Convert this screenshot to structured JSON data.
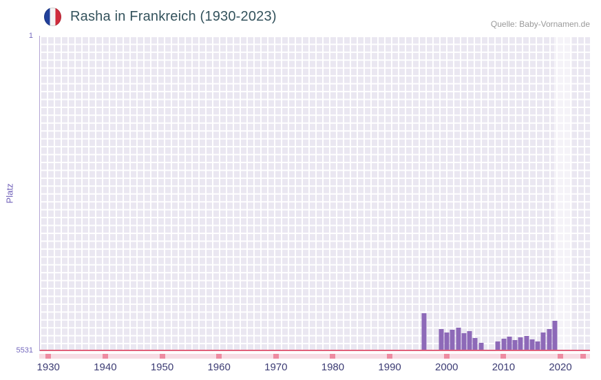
{
  "header": {
    "title": "Rasha in Frankreich (1930-2023)",
    "source": "Quelle: Baby-Vornamen.de",
    "flag_icon": "france-flag-icon"
  },
  "chart_data": {
    "type": "bar",
    "title": "Rasha in Frankreich (1930-2023)",
    "xlabel": "",
    "ylabel": "Platz",
    "y_axis": {
      "top_label": "1",
      "bottom_label": "5531",
      "inverted": true
    },
    "xlim": [
      1928.4,
      2025.2
    ],
    "ylim": [
      1,
      5531
    ],
    "grid": true,
    "x_ticks": [
      1930,
      1940,
      1950,
      1960,
      1970,
      1980,
      1990,
      2000,
      2010,
      2020
    ],
    "strip_marker_years": [
      1930,
      1940,
      1950,
      1960,
      1970,
      1980,
      1990,
      2000,
      2010,
      2020,
      2024
    ],
    "highlight_band": {
      "from": 2018.9,
      "to": 2022.1
    },
    "bars": [
      {
        "year": 1996,
        "rank": 4865
      },
      {
        "year": 1999,
        "rank": 5140
      },
      {
        "year": 2000,
        "rank": 5200
      },
      {
        "year": 2001,
        "rank": 5155
      },
      {
        "year": 2002,
        "rank": 5125
      },
      {
        "year": 2003,
        "rank": 5215
      },
      {
        "year": 2004,
        "rank": 5175
      },
      {
        "year": 2005,
        "rank": 5300
      },
      {
        "year": 2006,
        "rank": 5390
      },
      {
        "year": 2009,
        "rank": 5360
      },
      {
        "year": 2010,
        "rank": 5310
      },
      {
        "year": 2011,
        "rank": 5275
      },
      {
        "year": 2012,
        "rank": 5335
      },
      {
        "year": 2013,
        "rank": 5295
      },
      {
        "year": 2014,
        "rank": 5265
      },
      {
        "year": 2015,
        "rank": 5330
      },
      {
        "year": 2016,
        "rank": 5360
      },
      {
        "year": 2017,
        "rank": 5210
      },
      {
        "year": 2018,
        "rank": 5140
      },
      {
        "year": 2019,
        "rank": 5000
      }
    ],
    "colors": {
      "bar": "#8d69b8",
      "plot_bg": "#eae7f1",
      "grid": "#ffffff",
      "baseline": "#e0607a",
      "band": "rgba(255,255,255,0.5)",
      "strip": "#f7dce4",
      "strip_marker": "#ee8ba1",
      "axis_text": "#7569be",
      "x_tick_text": "#3c3c74",
      "title": "#33525c",
      "source": "#999999"
    }
  }
}
